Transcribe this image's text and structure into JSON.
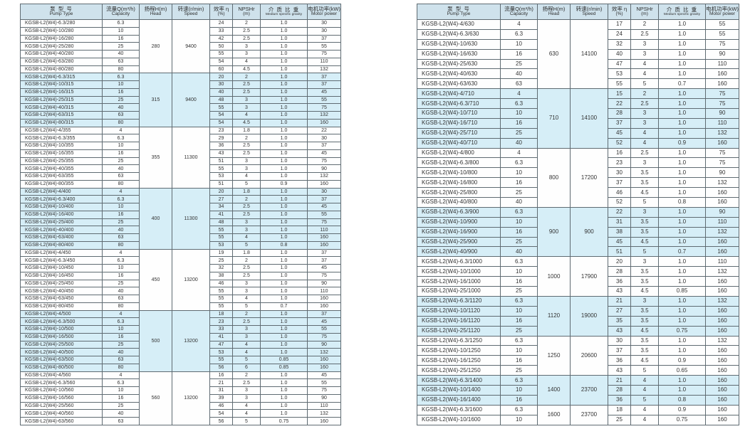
{
  "header": {
    "pump_type_zh": "泵 型 号",
    "pump_type_en": "Pump Type",
    "capacity_zh": "流量Q(m³/h)",
    "capacity_en": "Capacity",
    "head_zh": "扬程H(m)",
    "head_en": "Head",
    "speed_zh": "转速(r/min)",
    "speed_en": "Speed",
    "eff_zh": "效率 η",
    "eff_en": "(%)",
    "npshr_zh": "NPSHr",
    "npshr_en": "(m)",
    "gravity_zh": "介 质 比 重",
    "gravity_en": "Medium specific gravity",
    "power_zh": "电机功率(kW)",
    "power_en": "Motor power"
  },
  "left_table": {
    "groups": [
      {
        "head": "280",
        "speed": "9400",
        "shade": false,
        "rows": [
          {
            "t": "KGSB-L2(W4)-6.3/280",
            "q": "6.3",
            "e": "24",
            "n": "2",
            "g": "1.0",
            "p": "30"
          },
          {
            "t": "KGSB-L2(W4)-10/280",
            "q": "10",
            "e": "33",
            "n": "2.5",
            "g": "1.0",
            "p": "30"
          },
          {
            "t": "KGSB-L2(W4)-16/280",
            "q": "16",
            "e": "42",
            "n": "2.5",
            "g": "1.0",
            "p": "37"
          },
          {
            "t": "KGSB-L2(W4)-25/280",
            "q": "25",
            "e": "50",
            "n": "3",
            "g": "1.0",
            "p": "55"
          },
          {
            "t": "KGSB-L2(W4)-40/280",
            "q": "40",
            "e": "55",
            "n": "3",
            "g": "1.0",
            "p": "75"
          },
          {
            "t": "KGSB-L2(W4)-63/280",
            "q": "63",
            "e": "54",
            "n": "4",
            "g": "1.0",
            "p": "110"
          },
          {
            "t": "KGSB-L2(W4)-80/280",
            "q": "80",
            "e": "60",
            "n": "4.5",
            "g": "1.0",
            "p": "132"
          }
        ]
      },
      {
        "head": "315",
        "speed": "9400",
        "shade": true,
        "rows": [
          {
            "t": "KGSB-L2(W4)-6.3/315",
            "q": "6.3",
            "e": "20",
            "n": "2",
            "g": "1.0",
            "p": "37"
          },
          {
            "t": "KGSB-L2(W4)-10/315",
            "q": "10",
            "e": "30",
            "n": "2.5",
            "g": "1.0",
            "p": "37"
          },
          {
            "t": "KGSB-L2(W4)-16/315",
            "q": "16",
            "e": "40",
            "n": "2.5",
            "g": "1.0",
            "p": "45"
          },
          {
            "t": "KGSB-L2(W4)-25/315",
            "q": "25",
            "e": "48",
            "n": "3",
            "g": "1.0",
            "p": "55"
          },
          {
            "t": "KGSB-L2(W4)-40/315",
            "q": "40",
            "e": "55",
            "n": "3",
            "g": "1.0",
            "p": "75"
          },
          {
            "t": "KGSB-L2(W4)-63/315",
            "q": "63",
            "e": "54",
            "n": "4",
            "g": "1.0",
            "p": "132"
          },
          {
            "t": "KGSB-L2(W4)-80/315",
            "q": "80",
            "e": "54",
            "n": "4.5",
            "g": "1.0",
            "p": "160"
          }
        ]
      },
      {
        "head": "355",
        "speed": "11300",
        "shade": false,
        "rows": [
          {
            "t": "KGSB-L2(W4)-4/355",
            "q": "4",
            "e": "23",
            "n": "1.8",
            "g": "1.0",
            "p": "22"
          },
          {
            "t": "KGSB-L2(W4)-6.3/355",
            "q": "6.3",
            "e": "29",
            "n": "2",
            "g": "1.0",
            "p": "30"
          },
          {
            "t": "KGSB-L2(W4)-10/355",
            "q": "10",
            "e": "36",
            "n": "2.5",
            "g": "1.0",
            "p": "37"
          },
          {
            "t": "KGSB-L2(W4)-16/355",
            "q": "16",
            "e": "43",
            "n": "2.5",
            "g": "1.0",
            "p": "45"
          },
          {
            "t": "KGSB-L2(W4)-25/355",
            "q": "25",
            "e": "51",
            "n": "3",
            "g": "1.0",
            "p": "75"
          },
          {
            "t": "KGSB-L2(W4)-40/355",
            "q": "40",
            "e": "55",
            "n": "3",
            "g": "1.0",
            "p": "90"
          },
          {
            "t": "KGSB-L2(W4)-63/355",
            "q": "63",
            "e": "53",
            "n": "4",
            "g": "1.0",
            "p": "132"
          },
          {
            "t": "KGSB-L2(W4)-80/355",
            "q": "80",
            "e": "51",
            "n": "5",
            "g": "0.9",
            "p": "160"
          }
        ]
      },
      {
        "head": "400",
        "speed": "11300",
        "shade": true,
        "rows": [
          {
            "t": "KGSB-L2(W4)-4/400",
            "q": "4",
            "e": "20",
            "n": "1.8",
            "g": "1.0",
            "p": "30"
          },
          {
            "t": "KGSB-L2(W4)-6.3/400",
            "q": "6.3",
            "e": "27",
            "n": "2",
            "g": "1.0",
            "p": "37"
          },
          {
            "t": "KGSB-L2(W4)-10/400",
            "q": "10",
            "e": "34",
            "n": "2.5",
            "g": "1.0",
            "p": "45"
          },
          {
            "t": "KGSB-L2(W4)-16/400",
            "q": "16",
            "e": "41",
            "n": "2.5",
            "g": "1.0",
            "p": "55"
          },
          {
            "t": "KGSB-L2(W4)-25/400",
            "q": "25",
            "e": "48",
            "n": "3",
            "g": "1.0",
            "p": "75"
          },
          {
            "t": "KGSB-L2(W4)-40/400",
            "q": "40",
            "e": "55",
            "n": "3",
            "g": "1.0",
            "p": "110"
          },
          {
            "t": "KGSB-L2(W4)-63/400",
            "q": "63",
            "e": "55",
            "n": "4",
            "g": "1.0",
            "p": "160"
          },
          {
            "t": "KGSB-L2(W4)-80/400",
            "q": "80",
            "e": "53",
            "n": "5",
            "g": "0.8",
            "p": "160"
          }
        ]
      },
      {
        "head": "450",
        "speed": "13200",
        "shade": false,
        "rows": [
          {
            "t": "KGSB-L2(W4)-4/450",
            "q": "4",
            "e": "19",
            "n": "1.8",
            "g": "1.0",
            "p": "37"
          },
          {
            "t": "KGSB-L2(W4)-6.3/450",
            "q": "6.3",
            "e": "25",
            "n": "2",
            "g": "1.0",
            "p": "37"
          },
          {
            "t": "KGSB-L2(W4)-10/450",
            "q": "10",
            "e": "32",
            "n": "2.5",
            "g": "1.0",
            "p": "45"
          },
          {
            "t": "KGSB-L2(W4)-16/450",
            "q": "16",
            "e": "38",
            "n": "2.5",
            "g": "1.0",
            "p": "75"
          },
          {
            "t": "KGSB-L2(W4)-25/450",
            "q": "25",
            "e": "46",
            "n": "3",
            "g": "1.0",
            "p": "90"
          },
          {
            "t": "KGSB-L2(W4)-40/450",
            "q": "40",
            "e": "55",
            "n": "3",
            "g": "1.0",
            "p": "110"
          },
          {
            "t": "KGSB-L2(W4)-63/450",
            "q": "63",
            "e": "55",
            "n": "4",
            "g": "1.0",
            "p": "160"
          },
          {
            "t": "KGSB-L2(W4)-80/450",
            "q": "80",
            "e": "55",
            "n": "5",
            "g": "0.7",
            "p": "160"
          }
        ]
      },
      {
        "head": "500",
        "speed": "13200",
        "shade": true,
        "rows": [
          {
            "t": "KGSB-L2(W4)-4/500",
            "q": "4",
            "e": "18",
            "n": "2",
            "g": "1.0",
            "p": "37"
          },
          {
            "t": "KGSB-L2(W4)-6.3/500",
            "q": "6.3",
            "e": "23",
            "n": "2.5",
            "g": "1.0",
            "p": "45"
          },
          {
            "t": "KGSB-L2(W4)-10/500",
            "q": "10",
            "e": "33",
            "n": "3",
            "g": "1.0",
            "p": "55"
          },
          {
            "t": "KGSB-L2(W4)-16/500",
            "q": "16",
            "e": "41",
            "n": "3",
            "g": "1.0",
            "p": "75"
          },
          {
            "t": "KGSB-L2(W4)-25/500",
            "q": "25",
            "e": "47",
            "n": "4",
            "g": "1.0",
            "p": "90"
          },
          {
            "t": "KGSB-L2(W4)-40/500",
            "q": "40",
            "e": "53",
            "n": "4",
            "g": "1.0",
            "p": "132"
          },
          {
            "t": "KGSB-L2(W4)-63/500",
            "q": "63",
            "e": "55",
            "n": "5",
            "g": "0.85",
            "p": "160"
          },
          {
            "t": "KGSB-L2(W4)-80/500",
            "q": "80",
            "e": "56",
            "n": "6",
            "g": "0.85",
            "p": "160"
          }
        ]
      },
      {
        "head": "560",
        "speed": "13200",
        "shade": false,
        "rows": [
          {
            "t": "KGSB-L2(W4)-4/560",
            "q": "4",
            "e": "16",
            "n": "2",
            "g": "1.0",
            "p": "45"
          },
          {
            "t": "KGSB-L2(W4)-6.3/560",
            "q": "6.3",
            "e": "21",
            "n": "2.5",
            "g": "1.0",
            "p": "55"
          },
          {
            "t": "KGSB-L2(W4)-10/560",
            "q": "10",
            "e": "31",
            "n": "3",
            "g": "1.0",
            "p": "75"
          },
          {
            "t": "KGSB-L2(W4)-16/560",
            "q": "16",
            "e": "39",
            "n": "3",
            "g": "1.0",
            "p": "90"
          },
          {
            "t": "KGSB-L2(W4)-25/560",
            "q": "25",
            "e": "46",
            "n": "4",
            "g": "1.0",
            "p": "110"
          },
          {
            "t": "KGSB-L2(W4)-40/560",
            "q": "40",
            "e": "54",
            "n": "4",
            "g": "1.0",
            "p": "132"
          },
          {
            "t": "KGSB-L2(W4)-63/560",
            "q": "63",
            "e": "56",
            "n": "5",
            "g": "0.75",
            "p": "160"
          }
        ]
      }
    ]
  },
  "right_table": {
    "groups": [
      {
        "head": "630",
        "speed": "14100",
        "shade": false,
        "rows": [
          {
            "t": "KGSB-L2(W4)-4/630",
            "q": "4",
            "e": "17",
            "n": "2",
            "g": "1.0",
            "p": "55"
          },
          {
            "t": "KGSB-L2(W4)-6.3/630",
            "q": "6.3",
            "e": "24",
            "n": "2.5",
            "g": "1.0",
            "p": "55"
          },
          {
            "t": "KGSB-L2(W4)-10/630",
            "q": "10",
            "e": "32",
            "n": "3",
            "g": "1.0",
            "p": "75"
          },
          {
            "t": "KGSB-L2(W4)-16/630",
            "q": "16",
            "e": "40",
            "n": "3",
            "g": "1.0",
            "p": "90"
          },
          {
            "t": "KGSB-L2(W4)-25/630",
            "q": "25",
            "e": "47",
            "n": "4",
            "g": "1.0",
            "p": "110"
          },
          {
            "t": "KGSB-L2(W4)-40/630",
            "q": "40",
            "e": "53",
            "n": "4",
            "g": "1.0",
            "p": "160"
          },
          {
            "t": "KGSB-L2(W4)-63/630",
            "q": "63",
            "e": "55",
            "n": "5",
            "g": "0.7",
            "p": "160"
          }
        ]
      },
      {
        "head": "710",
        "speed": "14100",
        "shade": true,
        "rows": [
          {
            "t": "KGSB-L2(W4)-4/710",
            "q": "4",
            "e": "15",
            "n": "2",
            "g": "1.0",
            "p": "75"
          },
          {
            "t": "KGSB-L2(W4)-6.3/710",
            "q": "6.3",
            "e": "22",
            "n": "2.5",
            "g": "1.0",
            "p": "75"
          },
          {
            "t": "KGSB-L2(W4)-10/710",
            "q": "10",
            "e": "28",
            "n": "3",
            "g": "1.0",
            "p": "90"
          },
          {
            "t": "KGSB-L2(W4)-16/710",
            "q": "16",
            "e": "37",
            "n": "3",
            "g": "1.0",
            "p": "110"
          },
          {
            "t": "KGSB-L2(W4)-25/710",
            "q": "25",
            "e": "45",
            "n": "4",
            "g": "1.0",
            "p": "132"
          },
          {
            "t": "KGSB-L2(W4)-40/710",
            "q": "40",
            "e": "52",
            "n": "4",
            "g": "0.9",
            "p": "160"
          }
        ]
      },
      {
        "head": "800",
        "speed": "17200",
        "shade": false,
        "rows": [
          {
            "t": "KGSB-L2(W4)-4/800",
            "q": "4",
            "e": "16",
            "n": "2.5",
            "g": "1.0",
            "p": "75"
          },
          {
            "t": "KGSB-L2(W4)-6.3/800",
            "q": "6.3",
            "e": "23",
            "n": "3",
            "g": "1.0",
            "p": "75"
          },
          {
            "t": "KGSB-L2(W4)-10/800",
            "q": "10",
            "e": "30",
            "n": "3.5",
            "g": "1.0",
            "p": "90"
          },
          {
            "t": "KGSB-L2(W4)-16/800",
            "q": "16",
            "e": "37",
            "n": "3.5",
            "g": "1.0",
            "p": "132"
          },
          {
            "t": "KGSB-L2(W4)-25/800",
            "q": "25",
            "e": "46",
            "n": "4.5",
            "g": "1.0",
            "p": "160"
          },
          {
            "t": "KGSB-L2(W4)-40/800",
            "q": "40",
            "e": "52",
            "n": "5",
            "g": "0.8",
            "p": "160"
          }
        ]
      },
      {
        "head": "900",
        "speed": "900",
        "shade": true,
        "rows": [
          {
            "t": "KGSB-L2(W4)-6.3/900",
            "q": "6.3",
            "e": "22",
            "n": "3",
            "g": "1.0",
            "p": "90"
          },
          {
            "t": "KGSB-L2(W4)-10/900",
            "q": "10",
            "e": "31",
            "n": "3.5",
            "g": "1.0",
            "p": "110"
          },
          {
            "t": "KGSB-L2(W4)-16/900",
            "q": "16",
            "e": "38",
            "n": "3.5",
            "g": "1.0",
            "p": "132"
          },
          {
            "t": "KGSB-L2(W4)-25/900",
            "q": "25",
            "e": "45",
            "n": "4.5",
            "g": "1.0",
            "p": "160"
          },
          {
            "t": "KGSB-L2(W4)-40/900",
            "q": "40",
            "e": "51",
            "n": "5",
            "g": "0.7",
            "p": "160"
          }
        ]
      },
      {
        "head": "1000",
        "speed": "17900",
        "shade": false,
        "rows": [
          {
            "t": "KGSB-L2(W4)-6.3/1000",
            "q": "6.3",
            "e": "20",
            "n": "3",
            "g": "1.0",
            "p": "110"
          },
          {
            "t": "KGSB-L2(W4)-10/1000",
            "q": "10",
            "e": "28",
            "n": "3.5",
            "g": "1.0",
            "p": "132"
          },
          {
            "t": "KGSB-L2(W4)-16/1000",
            "q": "16",
            "e": "36",
            "n": "3.5",
            "g": "1.0",
            "p": "160"
          },
          {
            "t": "KGSB-L2(W4)-25/1000",
            "q": "25",
            "e": "43",
            "n": "4.5",
            "g": "0.85",
            "p": "160"
          }
        ]
      },
      {
        "head": "1120",
        "speed": "19000",
        "shade": true,
        "rows": [
          {
            "t": "KGSB-L2(W4)-6.3/1120",
            "q": "6.3",
            "e": "21",
            "n": "3",
            "g": "1.0",
            "p": "132"
          },
          {
            "t": "KGSB-L2(W4)-10/1120",
            "q": "10",
            "e": "27",
            "n": "3.5",
            "g": "1.0",
            "p": "160"
          },
          {
            "t": "KGSB-L2(W4)-16/1120",
            "q": "16",
            "e": "35",
            "n": "3.5",
            "g": "1.0",
            "p": "160"
          },
          {
            "t": "KGSB-L2(W4)-25/1120",
            "q": "25",
            "e": "43",
            "n": "4.5",
            "g": "0.75",
            "p": "160"
          }
        ]
      },
      {
        "head": "1250",
        "speed": "20600",
        "shade": false,
        "rows": [
          {
            "t": "KGSB-L2(W4)-6.3/1250",
            "q": "6.3",
            "e": "30",
            "n": "3.5",
            "g": "1.0",
            "p": "132"
          },
          {
            "t": "KGSB-L2(W4)-10/1250",
            "q": "10",
            "e": "37",
            "n": "3.5",
            "g": "1.0",
            "p": "160"
          },
          {
            "t": "KGSB-L2(W4)-16/1250",
            "q": "16",
            "e": "36",
            "n": "4.5",
            "g": "0.9",
            "p": "160"
          },
          {
            "t": "KGSB-L2(W4)-25/1250",
            "q": "25",
            "e": "43",
            "n": "5",
            "g": "0.65",
            "p": "160"
          }
        ]
      },
      {
        "head": "1400",
        "speed": "23700",
        "shade": true,
        "rows": [
          {
            "t": "KGSB-L2(W4)-6.3/1400",
            "q": "6.3",
            "e": "21",
            "n": "4",
            "g": "1.0",
            "p": "160"
          },
          {
            "t": "KGSB-L2(W4)-10/1400",
            "q": "10",
            "e": "28",
            "n": "4",
            "g": "1.0",
            "p": "160"
          },
          {
            "t": "KGSB-L2(W4)-16/1400",
            "q": "16",
            "e": "36",
            "n": "5",
            "g": "0.8",
            "p": "160"
          }
        ]
      },
      {
        "head": "1600",
        "speed": "23700",
        "shade": false,
        "rows": [
          {
            "t": "KGSB-L2(W4)-6.3/1600",
            "q": "6.3",
            "e": "18",
            "n": "4",
            "g": "0.9",
            "p": "160"
          },
          {
            "t": "KGSB-L2(W4)-10/1600",
            "q": "10",
            "e": "25",
            "n": "4",
            "g": "0.75",
            "p": "160"
          }
        ]
      }
    ]
  },
  "colors": {
    "band_blue": "#d6eef7",
    "header_bg": "#cfe2ec",
    "border": "#5f6b72"
  }
}
